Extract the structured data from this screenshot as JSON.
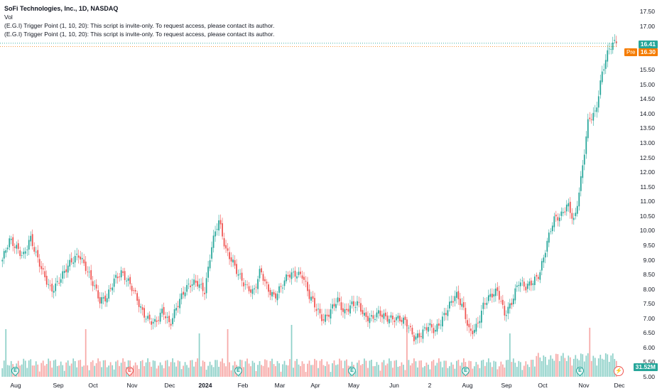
{
  "legend": {
    "title": "SoFi Technologies, Inc., 1D, NASDAQ",
    "vol": "Vol",
    "script1": "(E.G.I) Trigger Point  (1, 10, 20): This script is invite-only. To request access, please contact its author.",
    "script2": "(E.G.I) Trigger Point  (1, 10, 20): This script is invite-only. To request access, please contact its author."
  },
  "price_axis": [
    "17.50",
    "17.00",
    "16.41",
    "16.30",
    "15.50",
    "15.00",
    "14.50",
    "14.00",
    "13.50",
    "13.00",
    "12.50",
    "12.00",
    "11.50",
    "11.00",
    "10.50",
    "10.00",
    "9.50",
    "9.00",
    "8.50",
    "8.00",
    "7.50",
    "7.00",
    "6.50",
    "6.00",
    "5.50",
    "5.00"
  ],
  "price_axis_ticks": [
    "17.50",
    "17.00",
    "15.50",
    "15.00",
    "14.50",
    "14.00",
    "13.50",
    "13.00",
    "12.50",
    "12.00",
    "11.50",
    "11.00",
    "10.50",
    "10.00",
    "9.50",
    "9.00",
    "8.50",
    "8.00",
    "7.50",
    "7.00",
    "6.50",
    "6.00",
    "5.50",
    "5.00"
  ],
  "last_price": "16.41",
  "pre_label": "Pre",
  "pre_price": "16.30",
  "volume_label": "31.52M",
  "time_axis": [
    "Aug",
    "Sep",
    "Oct",
    "Nov",
    "Dec",
    "2024",
    "Feb",
    "Mar",
    "Apr",
    "May",
    "Jun",
    "2",
    "Aug",
    "Sep",
    "Oct",
    "Nov",
    "Dec"
  ],
  "events": [
    {
      "type": "earnings",
      "label": "E",
      "color": "green"
    },
    {
      "type": "earnings",
      "label": "E",
      "color": "red"
    },
    {
      "type": "earnings",
      "label": "E",
      "color": "green"
    },
    {
      "type": "earnings",
      "label": "E",
      "color": "green"
    },
    {
      "type": "earnings",
      "label": "E",
      "color": "green"
    },
    {
      "type": "earnings",
      "label": "E",
      "color": "green"
    }
  ],
  "bolt_icon": "lightning-icon",
  "colors": {
    "up": "#26a69a",
    "down": "#ef5350",
    "up_vol": "#8fd1c9",
    "down_vol": "#f7a9a7",
    "pre": "#f57c00"
  },
  "chart_data": {
    "type": "candlestick",
    "title": "SoFi Technologies, Inc., 1D, NASDAQ",
    "ylim": [
      5.0,
      17.5
    ],
    "x_labels": [
      "Aug",
      "Sep",
      "Oct",
      "Nov",
      "Dec",
      "2024",
      "Feb",
      "Mar",
      "Apr",
      "May",
      "Jun",
      "2",
      "Aug",
      "Sep",
      "Oct",
      "Nov",
      "Dec"
    ],
    "weekly_close": [
      9.0,
      9.6,
      9.4,
      9.2,
      9.8,
      9.0,
      8.4,
      8.0,
      8.3,
      8.6,
      8.9,
      9.2,
      8.8,
      8.2,
      7.5,
      7.7,
      8.4,
      8.6,
      8.2,
      7.8,
      7.3,
      7.0,
      6.8,
      7.2,
      6.8,
      7.5,
      7.9,
      8.1,
      8.2,
      8.0,
      9.5,
      10.3,
      9.3,
      9.0,
      8.5,
      8.0,
      7.8,
      8.7,
      8.1,
      7.7,
      8.0,
      8.5,
      8.6,
      8.5,
      7.7,
      7.3,
      7.0,
      7.3,
      7.6,
      7.1,
      7.5,
      7.6,
      7.0,
      6.9,
      7.2,
      7.1,
      7.0,
      6.9,
      6.8,
      6.4,
      6.5,
      6.7,
      6.5,
      7.0,
      7.5,
      7.8,
      7.3,
      6.5,
      6.8,
      7.5,
      7.7,
      7.9,
      7.2,
      7.6,
      8.2,
      8.0,
      8.3,
      8.6,
      9.5,
      10.3,
      10.5,
      11.0,
      10.3,
      11.8,
      13.8,
      14.1,
      15.5,
      16.2,
      16.4
    ],
    "last_close": 16.41,
    "premarket": 16.3
  }
}
